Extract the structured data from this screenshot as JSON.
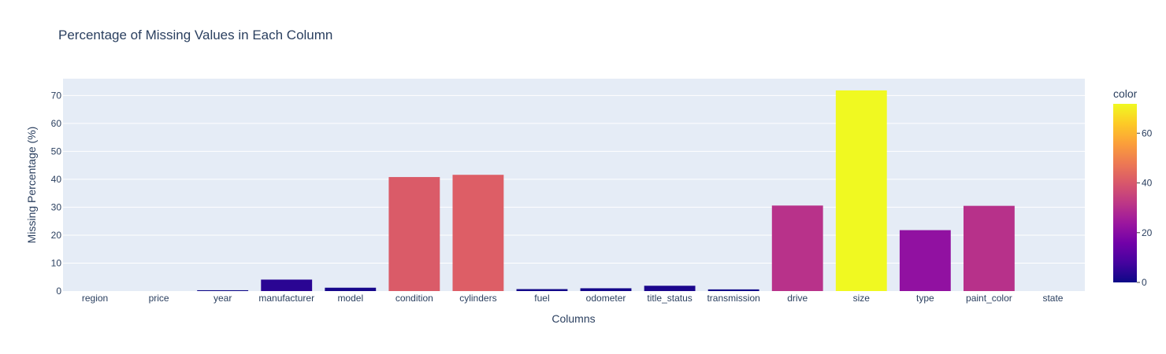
{
  "chart_data": {
    "type": "bar",
    "title": "Percentage of Missing Values in Each Column",
    "xlabel": "Columns",
    "ylabel": "Missing Percentage (%)",
    "categories": [
      "region",
      "price",
      "year",
      "manufacturer",
      "model",
      "condition",
      "cylinders",
      "fuel",
      "odometer",
      "title_status",
      "transmission",
      "drive",
      "size",
      "type",
      "paint_color",
      "state"
    ],
    "values": [
      0,
      0,
      0.3,
      4.1,
      1.2,
      40.8,
      41.6,
      0.7,
      1.0,
      1.9,
      0.6,
      30.6,
      71.8,
      21.8,
      30.5,
      0
    ],
    "ylim": [
      0,
      76
    ],
    "yticks": [
      0,
      10,
      20,
      30,
      40,
      50,
      60,
      70
    ],
    "grid": true,
    "colorbar": {
      "title": "color",
      "ticks": [
        0,
        20,
        40,
        60
      ],
      "range": [
        0,
        71.8
      ],
      "colorscale": [
        "#0d0887",
        "#46039f",
        "#7201a8",
        "#9c179e",
        "#bd3786",
        "#d8576b",
        "#ed7953",
        "#fb9f3a",
        "#fdca26",
        "#f0f921"
      ]
    },
    "plot_bgcolor": "#e5ecf6"
  }
}
